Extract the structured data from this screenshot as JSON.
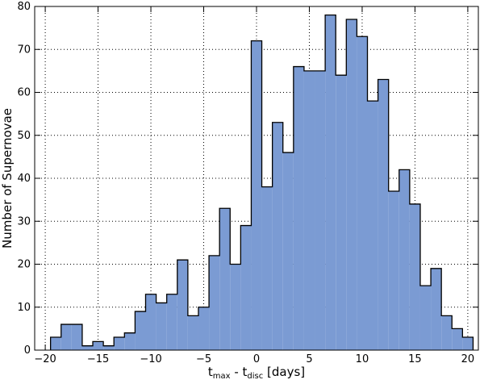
{
  "chart_data": {
    "type": "histogram",
    "xlabel": [
      "t",
      "max",
      " - t",
      "disc",
      " [days]"
    ],
    "ylabel": "Number of Supernovae",
    "bins": [
      -19.5,
      -18.5,
      -17.5,
      -16.5,
      -15.5,
      -14.5,
      -13.5,
      -12.5,
      -11.5,
      -10.5,
      -9.5,
      -8.5,
      -7.5,
      -6.5,
      -5.5,
      -4.5,
      -3.5,
      -2.5,
      -1.5,
      -0.5,
      0.5,
      1.5,
      2.5,
      3.5,
      4.5,
      5.5,
      6.5,
      7.5,
      8.5,
      9.5,
      10.5,
      11.5,
      12.5,
      13.5,
      14.5,
      15.5,
      16.5,
      17.5,
      18.5,
      19.5,
      20.5
    ],
    "values": [
      3,
      6,
      6,
      1,
      2,
      1,
      3,
      4,
      9,
      13,
      11,
      13,
      21,
      8,
      10,
      22,
      33,
      20,
      29,
      72,
      38,
      53,
      46,
      66,
      65,
      65,
      78,
      64,
      77,
      73,
      58,
      63,
      37,
      42,
      34,
      15,
      19,
      8,
      5,
      3
    ],
    "color": "#7b9bd3",
    "edgecolor": "#000000",
    "xlim": [
      -21,
      21
    ],
    "ylim": [
      0,
      80
    ],
    "xticks": [
      {
        "value": -20,
        "label": "−20"
      },
      {
        "value": -15,
        "label": "−15"
      },
      {
        "value": -10,
        "label": "−10"
      },
      {
        "value": -5,
        "label": "−5"
      },
      0,
      5,
      10,
      15,
      20
    ],
    "yticks": [
      0,
      10,
      20,
      30,
      40,
      50,
      60,
      70,
      80
    ],
    "grid": true
  }
}
